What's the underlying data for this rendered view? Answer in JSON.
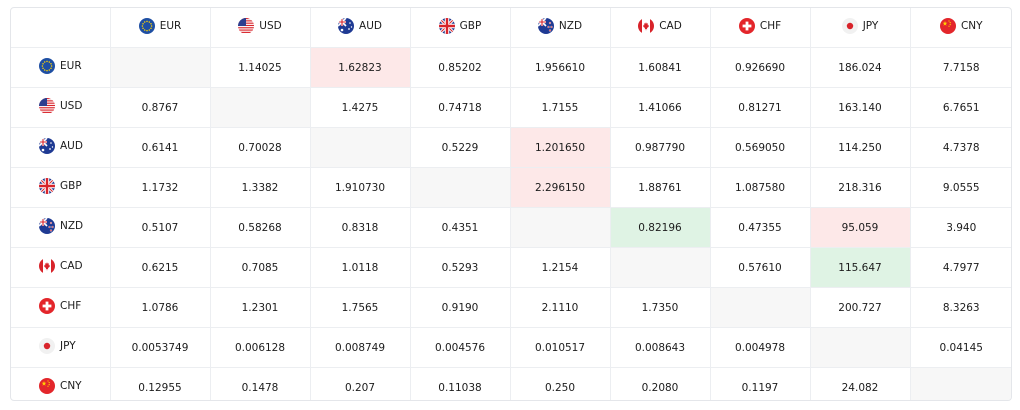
{
  "currencies": [
    "EUR",
    "USD",
    "AUD",
    "GBP",
    "NZD",
    "CAD",
    "CHF",
    "JPY",
    "CNY"
  ],
  "flag_icons": {
    "EUR": "eu-flag-icon",
    "USD": "us-flag-icon",
    "AUD": "au-flag-icon",
    "GBP": "gb-flag-icon",
    "NZD": "nz-flag-icon",
    "CAD": "ca-flag-icon",
    "CHF": "ch-flag-icon",
    "JPY": "jp-flag-icon",
    "CNY": "cn-flag-icon"
  },
  "highlight_colors": {
    "pink": "#fde8e8",
    "green": "#dff3e4",
    "empty": "#f7f7f7"
  },
  "rows": [
    {
      "base": "EUR",
      "values": [
        "",
        "1.14025",
        "1.62823",
        "0.85202",
        "1.956610",
        "1.60841",
        "0.926690",
        "186.024",
        "7.7158"
      ],
      "highlights": [
        "empty",
        "",
        "pink",
        "",
        "",
        "",
        "",
        "",
        ""
      ]
    },
    {
      "base": "USD",
      "values": [
        "0.8767",
        "",
        "1.4275",
        "0.74718",
        "1.7155",
        "1.41066",
        "0.81271",
        "163.140",
        "6.7651"
      ],
      "highlights": [
        "",
        "empty",
        "",
        "",
        "",
        "",
        "",
        "",
        ""
      ]
    },
    {
      "base": "AUD",
      "values": [
        "0.6141",
        "0.70028",
        "",
        "0.5229",
        "1.201650",
        "0.987790",
        "0.569050",
        "114.250",
        "4.7378"
      ],
      "highlights": [
        "",
        "",
        "empty",
        "",
        "pink",
        "",
        "",
        "",
        ""
      ]
    },
    {
      "base": "GBP",
      "values": [
        "1.1732",
        "1.3382",
        "1.910730",
        "",
        "2.296150",
        "1.88761",
        "1.087580",
        "218.316",
        "9.0555"
      ],
      "highlights": [
        "",
        "",
        "",
        "empty",
        "pink",
        "",
        "",
        "",
        ""
      ]
    },
    {
      "base": "NZD",
      "values": [
        "0.5107",
        "0.58268",
        "0.8318",
        "0.4351",
        "",
        "0.82196",
        "0.47355",
        "95.059",
        "3.940"
      ],
      "highlights": [
        "",
        "",
        "",
        "",
        "empty",
        "green",
        "",
        "pink",
        ""
      ]
    },
    {
      "base": "CAD",
      "values": [
        "0.6215",
        "0.7085",
        "1.0118",
        "0.5293",
        "1.2154",
        "",
        "0.57610",
        "115.647",
        "4.7977"
      ],
      "highlights": [
        "",
        "",
        "",
        "",
        "",
        "empty",
        "",
        "green",
        ""
      ]
    },
    {
      "base": "CHF",
      "values": [
        "1.0786",
        "1.2301",
        "1.7565",
        "0.9190",
        "2.1110",
        "1.7350",
        "",
        "200.727",
        "8.3263"
      ],
      "highlights": [
        "",
        "",
        "",
        "",
        "",
        "",
        "empty",
        "",
        ""
      ]
    },
    {
      "base": "JPY",
      "values": [
        "0.0053749",
        "0.006128",
        "0.008749",
        "0.004576",
        "0.010517",
        "0.008643",
        "0.004978",
        "",
        "0.04145"
      ],
      "highlights": [
        "",
        "",
        "",
        "",
        "",
        "",
        "",
        "empty",
        ""
      ]
    },
    {
      "base": "CNY",
      "values": [
        "0.12955",
        "0.1478",
        "0.207",
        "0.11038",
        "0.250",
        "0.2080",
        "0.1197",
        "24.082",
        ""
      ],
      "highlights": [
        "",
        "",
        "",
        "",
        "",
        "",
        "",
        "",
        "empty"
      ]
    }
  ]
}
